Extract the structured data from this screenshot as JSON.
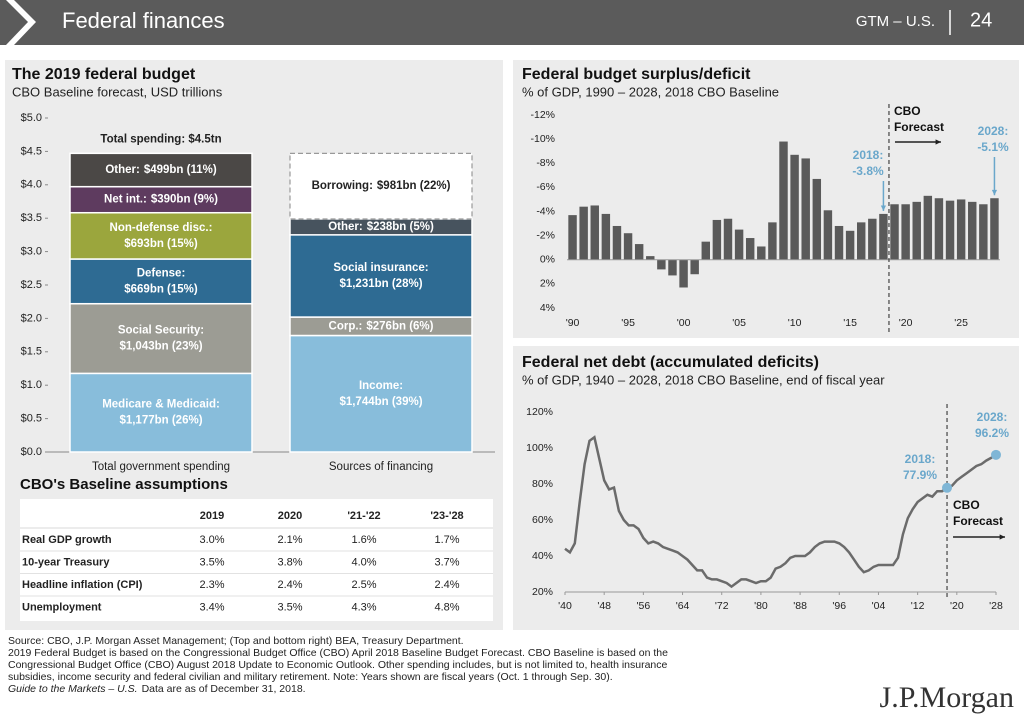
{
  "header": {
    "title": "Federal finances",
    "series": "GTM – U.S.",
    "page": "24"
  },
  "chart_data": [
    {
      "type": "stacked_bar",
      "title": "The 2019 federal budget",
      "subtitle": "CBO Baseline forecast, USD trillions",
      "categories": [
        "Total government spending",
        "Sources of financing"
      ],
      "stacks": [
        {
          "total_label": "Total spending: $4.5tn",
          "segments": [
            {
              "name": "Medicare & Medicaid:",
              "value": 1.177,
              "value_label": "$1,177bn (26%)",
              "color": "#88bddb"
            },
            {
              "name": "Social Security:",
              "value": 1.043,
              "value_label": "$1,043bn (23%)",
              "color": "#9c9c94"
            },
            {
              "name": "Defense:",
              "value": 0.669,
              "value_label": "$669bn (15%)",
              "color": "#2e6b93"
            },
            {
              "name": "Non-defense disc.:",
              "value": 0.693,
              "value_label": "$693bn (15%)",
              "color": "#9ba63d"
            },
            {
              "name": "Net int.:",
              "value": 0.39,
              "value_label": "$390bn (9%)",
              "color": "#5e3b5f"
            },
            {
              "name": "Other:",
              "value": 0.499,
              "value_label": "$499bn (11%)",
              "color": "#4b4846"
            }
          ]
        },
        {
          "segments": [
            {
              "name": "Income:",
              "value": 1.744,
              "value_label": "$1,744bn (39%)",
              "color": "#88bddb"
            },
            {
              "name": "Corp.:",
              "value": 0.276,
              "value_label": "$276bn (6%)",
              "color": "#9c9c94"
            },
            {
              "name": "Social insurance:",
              "value": 1.231,
              "value_label": "$1,231bn (28%)",
              "color": "#2e6b93"
            },
            {
              "name": "Other:",
              "value": 0.238,
              "value_label": "$238bn (5%)",
              "color": "#47535e"
            },
            {
              "name": "Borrowing:",
              "value": 0.981,
              "value_label": "$981bn (22%)",
              "color": "#ffffff",
              "dashed": true
            }
          ]
        }
      ],
      "ylim": [
        0,
        5
      ],
      "yticks": [
        {
          "value": 0,
          "label": "$0.0"
        },
        {
          "value": 0.5,
          "label": "$0.5"
        },
        {
          "value": 1,
          "label": "$1.0"
        },
        {
          "value": 1.5,
          "label": "$1.5"
        },
        {
          "value": 2,
          "label": "$2.0"
        },
        {
          "value": 2.5,
          "label": "$2.5"
        },
        {
          "value": 3,
          "label": "$3.0"
        },
        {
          "value": 3.5,
          "label": "$3.5"
        },
        {
          "value": 4,
          "label": "$4.0"
        },
        {
          "value": 4.5,
          "label": "$4.5"
        },
        {
          "value": 5,
          "label": "$5.0"
        }
      ]
    },
    {
      "type": "bar",
      "title": "Federal budget surplus/deficit",
      "subtitle": "% of GDP, 1990 – 2028, 2018 CBO Baseline",
      "categories": [
        "'90",
        null,
        null,
        null,
        null,
        "'95",
        null,
        null,
        null,
        null,
        "'00",
        null,
        null,
        null,
        null,
        "'05",
        null,
        null,
        null,
        null,
        "'10",
        null,
        null,
        null,
        null,
        "'15",
        null,
        null,
        null,
        null,
        "'20",
        null,
        null,
        null,
        null,
        "'25",
        null,
        null,
        null
      ],
      "values": [
        -3.7,
        -4.4,
        -4.5,
        -3.8,
        -2.8,
        -2.2,
        -1.3,
        -0.3,
        0.8,
        1.3,
        2.3,
        1.2,
        -1.5,
        -3.3,
        -3.4,
        -2.5,
        -1.8,
        -1.1,
        -3.1,
        -9.8,
        -8.7,
        -8.4,
        -6.7,
        -4.1,
        -2.8,
        -2.4,
        -3.1,
        -3.4,
        -3.8,
        -4.6,
        -4.6,
        -4.8,
        -5.3,
        -5.1,
        -4.9,
        -5.0,
        -4.8,
        -4.6,
        -5.1
      ],
      "color": "#5a5a5a",
      "ylim": [
        4,
        -12
      ],
      "yticks": [
        {
          "value": -12,
          "label": "-12%"
        },
        {
          "value": -10,
          "label": "-10%"
        },
        {
          "value": -8,
          "label": "-8%"
        },
        {
          "value": -6,
          "label": "-6%"
        },
        {
          "value": -4,
          "label": "-4%"
        },
        {
          "value": -2,
          "label": "-2%"
        },
        {
          "value": 0,
          "label": "0%"
        },
        {
          "value": 2,
          "label": "2%"
        },
        {
          "value": 4,
          "label": "4%"
        }
      ],
      "annotations": [
        [
          "2018:",
          "-3.8%"
        ],
        [
          "2028:",
          "-5.1%"
        ],
        [
          "CBO",
          "Forecast"
        ]
      ]
    },
    {
      "type": "line",
      "title": "Federal net debt (accumulated deficits)",
      "subtitle": "% of GDP, 1940 – 2028, 2018 CBO Baseline, end of fiscal year",
      "x": [
        1940,
        1941,
        1942,
        1943,
        1944,
        1945,
        1946,
        1947,
        1948,
        1949,
        1950,
        1951,
        1952,
        1953,
        1954,
        1955,
        1956,
        1957,
        1958,
        1959,
        1960,
        1961,
        1962,
        1963,
        1964,
        1965,
        1966,
        1967,
        1968,
        1969,
        1970,
        1971,
        1972,
        1973,
        1974,
        1975,
        1976,
        1977,
        1978,
        1979,
        1980,
        1981,
        1982,
        1983,
        1984,
        1985,
        1986,
        1987,
        1988,
        1989,
        1990,
        1991,
        1992,
        1993,
        1994,
        1995,
        1996,
        1997,
        1998,
        1999,
        2000,
        2001,
        2002,
        2003,
        2004,
        2005,
        2006,
        2007,
        2008,
        2009,
        2010,
        2011,
        2012,
        2013,
        2014,
        2015,
        2016,
        2017,
        2018,
        2019,
        2020,
        2021,
        2022,
        2023,
        2024,
        2025,
        2026,
        2027,
        2028
      ],
      "values": [
        44,
        42,
        47,
        70,
        91,
        104,
        106,
        94,
        82,
        77,
        78,
        65,
        60,
        57,
        57,
        55,
        50,
        47,
        48,
        47,
        45,
        44,
        43,
        42,
        40,
        38,
        35,
        32,
        32,
        28,
        27,
        27,
        26,
        25,
        23,
        25,
        27,
        27,
        26,
        25,
        26,
        26,
        28,
        33,
        34,
        36,
        39,
        40,
        40,
        40,
        42,
        45,
        47,
        48,
        48,
        48,
        47,
        45,
        42,
        38,
        34,
        31,
        32,
        34,
        35,
        35,
        35,
        35,
        39,
        52,
        61,
        66,
        70,
        72,
        74,
        73,
        76,
        76,
        77.9,
        79,
        82,
        84,
        86,
        88,
        90,
        91,
        93,
        94.5,
        96.2
      ],
      "color": "#6b6b6b",
      "marker_color": "#7fb6d6",
      "xlim": [
        1940,
        2028
      ],
      "xticks": [
        {
          "value": 1940,
          "label": "'40"
        },
        {
          "value": 1948,
          "label": "'48"
        },
        {
          "value": 1956,
          "label": "'56"
        },
        {
          "value": 1964,
          "label": "'64"
        },
        {
          "value": 1972,
          "label": "'72"
        },
        {
          "value": 1980,
          "label": "'80"
        },
        {
          "value": 1988,
          "label": "'88"
        },
        {
          "value": 1996,
          "label": "'96"
        },
        {
          "value": 2004,
          "label": "'04"
        },
        {
          "value": 2012,
          "label": "'12"
        },
        {
          "value": 2020,
          "label": "'20"
        },
        {
          "value": 2028,
          "label": "'28"
        }
      ],
      "ylim": [
        20,
        120
      ],
      "yticks": [
        {
          "value": 20,
          "label": "20%"
        },
        {
          "value": 40,
          "label": "40%"
        },
        {
          "value": 60,
          "label": "60%"
        },
        {
          "value": 80,
          "label": "80%"
        },
        {
          "value": 100,
          "label": "100%"
        },
        {
          "value": 120,
          "label": "120%"
        }
      ],
      "annotations": [
        [
          "2018:",
          "77.9%"
        ],
        [
          "2028:",
          "96.2%"
        ],
        [
          "CBO",
          "Forecast"
        ]
      ]
    }
  ],
  "table": {
    "title": "CBO's Baseline assumptions",
    "columns": [
      "2019",
      "2020",
      "'21-'22",
      "'23-'28"
    ],
    "rows": [
      {
        "label": "Real GDP growth",
        "cells": [
          "3.0%",
          "2.1%",
          "1.6%",
          "1.7%"
        ]
      },
      {
        "label": "10-year Treasury",
        "cells": [
          "3.5%",
          "3.8%",
          "4.0%",
          "3.7%"
        ]
      },
      {
        "label": "Headline inflation (CPI)",
        "cells": [
          "2.3%",
          "2.4%",
          "2.5%",
          "2.4%"
        ]
      },
      {
        "label": "Unemployment",
        "cells": [
          "3.4%",
          "3.5%",
          "4.3%",
          "4.8%"
        ]
      }
    ]
  },
  "footer": {
    "lines": [
      "Source: CBO, J.P. Morgan Asset Management; (Top and bottom right) BEA, Treasury Department.",
      "2019 Federal Budget is based on the Congressional Budget Office (CBO) April 2018 Baseline Budget Forecast. CBO Baseline is based on the",
      "Congressional Budget Office (CBO) August 2018 Update to Economic Outlook. Other spending includes, but is not limited to, health insurance",
      "subsidies, income security and federal civilian and military retirement. Note: Years shown are fiscal years (Oct. 1 through Sep. 30)."
    ],
    "as_of_title": "Guide to the Markets – U.S.",
    "as_of": "Data are as of December 31, 2018.",
    "logo": "J.P.Morgan"
  }
}
